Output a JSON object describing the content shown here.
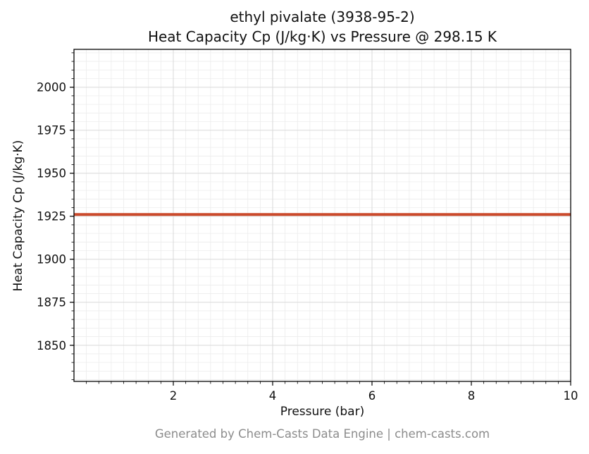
{
  "chart_data": {
    "type": "line",
    "title_lines": [
      "ethyl pivalate (3938-95-2)",
      "Heat Capacity Cp (J/kg·K) vs Pressure @ 298.15 K"
    ],
    "xlabel": "Pressure (bar)",
    "ylabel": "Heat Capacity Cp (J/kg·K)",
    "caption": "Generated by Chem-Casts Data Engine | chem-casts.com",
    "xlim": [
      0,
      10
    ],
    "ylim": [
      1829,
      2022
    ],
    "xticks": [
      2,
      4,
      6,
      8,
      10
    ],
    "yticks": [
      1850,
      1875,
      1900,
      1925,
      1950,
      1975,
      2000
    ],
    "x_minor_step": 0.25,
    "y_minor_step": 5,
    "grid": true,
    "legend": "none",
    "colors": {
      "line": "#cb4a2c",
      "major_grid": "#d9d9d9",
      "minor_grid": "#ececec",
      "axis": "#000000",
      "text": "#111111",
      "footer_text": "#8c8c8c"
    },
    "line_width": 4,
    "series": [
      {
        "name": "Heat Capacity Cp",
        "x": [
          0,
          10
        ],
        "y": [
          1926,
          1926
        ]
      }
    ]
  }
}
